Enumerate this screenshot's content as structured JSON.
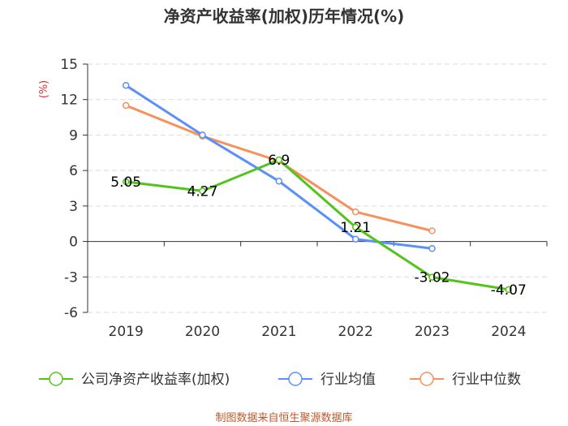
{
  "chart_data": {
    "type": "line",
    "title": "净资产收益率(加权)历年情况(%)",
    "ylabel": "(%)",
    "xlabel": "",
    "categories": [
      "2019",
      "2020",
      "2021",
      "2022",
      "2023",
      "2024"
    ],
    "ylim": [
      -6,
      15
    ],
    "yticks": [
      15,
      12,
      9,
      6,
      3,
      0,
      -3,
      -6
    ],
    "grid": "horizontal-dashed",
    "legend_position": "bottom",
    "series": [
      {
        "name": "公司净资产收益率(加权)",
        "color": "#52c41a",
        "values": [
          5.05,
          4.27,
          6.9,
          1.21,
          -3.02,
          -4.07
        ],
        "labels": [
          "5.05",
          "4.27",
          "6.9",
          "1.21",
          "-3.02",
          "-4.07"
        ]
      },
      {
        "name": "行业均值",
        "color": "#5b8ff9",
        "values": [
          13.2,
          9.0,
          5.1,
          0.2,
          -0.6,
          null
        ]
      },
      {
        "name": "行业中位数",
        "color": "#f7905a",
        "values": [
          11.5,
          8.9,
          6.8,
          2.5,
          0.9,
          null
        ]
      }
    ]
  },
  "source": "制图数据来自恒生聚源数据库"
}
